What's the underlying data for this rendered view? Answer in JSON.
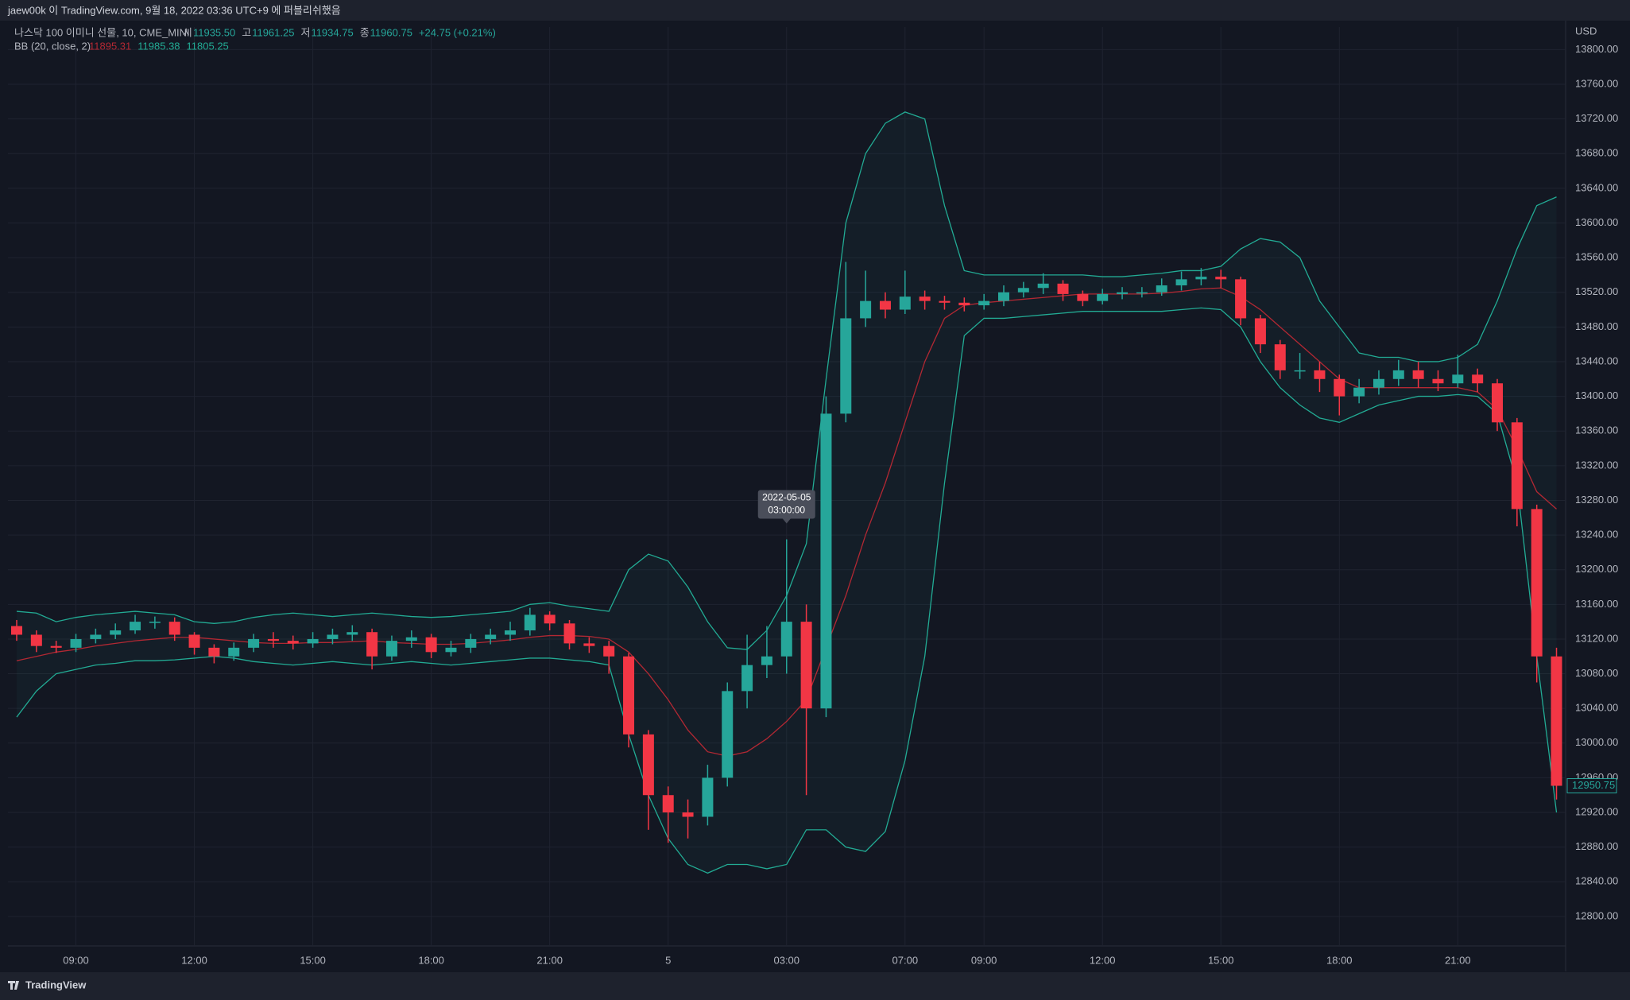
{
  "chart_data": {
    "type": "candlestick",
    "header": "jaew00k 이 TradingView.com, 9월 18, 2022 03:36 UTC+9 에 퍼블리쉬했음",
    "legend": {
      "symbol": "나스닥 100 이미니 선물, 10, CME_MINI",
      "open_label": "시",
      "open": "11935.50",
      "high_label": "고",
      "high": "11961.25",
      "low_label": "저",
      "low": "11934.75",
      "close_label": "종",
      "close": "11960.75",
      "change": "+24.75 (+0.21%)"
    },
    "indicator": {
      "name": "BB (20, close, 2)",
      "basis": "11895.31",
      "upper": "11985.38",
      "lower": "11805.25"
    },
    "currency": "USD",
    "tooltip": {
      "date": "2022-05-05",
      "time": "03:00:00",
      "index": 39
    },
    "footer": "TradingView",
    "categories": [
      null,
      null,
      null,
      "09:00",
      null,
      null,
      null,
      null,
      null,
      "12:00",
      null,
      null,
      null,
      null,
      null,
      "15:00",
      null,
      null,
      null,
      null,
      null,
      "18:00",
      null,
      null,
      null,
      null,
      null,
      "21:00",
      null,
      null,
      null,
      null,
      null,
      "5",
      null,
      null,
      null,
      null,
      null,
      "03:00",
      null,
      null,
      null,
      null,
      null,
      "07:00",
      null,
      null,
      null,
      "09:00",
      null,
      null,
      null,
      null,
      null,
      "12:00",
      null,
      null,
      null,
      null,
      null,
      "15:00",
      null,
      null,
      null,
      null,
      null,
      "18:00",
      null,
      null,
      null,
      null,
      null,
      "21:00",
      null,
      null,
      null,
      null,
      null
    ],
    "open": [
      13135,
      13125,
      13112,
      13110,
      13120,
      13125,
      13130,
      13140,
      13140,
      13125,
      13110,
      13100,
      13110,
      13120,
      13118,
      13115,
      13120,
      13125,
      13128,
      13100,
      13118,
      13122,
      13105,
      13110,
      13120,
      13125,
      13130,
      13148,
      13138,
      13115,
      13112,
      13100,
      13010,
      12940,
      12920,
      12915,
      12960,
      13060,
      13090,
      13100,
      13140,
      13040,
      13380,
      13490,
      13510,
      13500,
      13515,
      13510,
      13508,
      13505,
      13510,
      13520,
      13525,
      13530,
      13518,
      13510,
      13518,
      13520,
      13520,
      13528,
      13535,
      13538,
      13535,
      13490,
      13460,
      13430,
      13430,
      13420,
      13400,
      13410,
      13420,
      13430,
      13420,
      13415,
      13425,
      13415,
      13370,
      13270,
      13100
    ],
    "high": [
      13142,
      13130,
      13118,
      13126,
      13132,
      13138,
      13148,
      13146,
      13145,
      13128,
      13114,
      13116,
      13126,
      13128,
      13124,
      13128,
      13132,
      13136,
      13132,
      13124,
      13130,
      13126,
      13118,
      13126,
      13132,
      13140,
      13156,
      13152,
      13142,
      13122,
      13118,
      13104,
      13015,
      12950,
      12935,
      12975,
      13070,
      13125,
      13135,
      13235,
      13160,
      13400,
      13555,
      13545,
      13520,
      13545,
      13522,
      13516,
      13514,
      13518,
      13528,
      13532,
      13542,
      13534,
      13522,
      13524,
      13526,
      13526,
      13536,
      13544,
      13548,
      13546,
      13538,
      13494,
      13465,
      13450,
      13440,
      13425,
      13420,
      13430,
      13442,
      13440,
      13430,
      13448,
      13432,
      13420,
      13375,
      13275,
      13110
    ],
    "low": [
      13118,
      13105,
      13104,
      13105,
      13115,
      13120,
      13126,
      13132,
      13118,
      13102,
      13092,
      13095,
      13105,
      13110,
      13108,
      13110,
      13114,
      13118,
      13085,
      13095,
      13110,
      13098,
      13100,
      13104,
      13114,
      13118,
      13124,
      13130,
      13108,
      13104,
      13080,
      12995,
      12900,
      12885,
      12890,
      12905,
      12950,
      13040,
      13075,
      13080,
      12940,
      13030,
      13370,
      13480,
      13490,
      13495,
      13500,
      13500,
      13498,
      13500,
      13504,
      13514,
      13518,
      13510,
      13504,
      13506,
      13512,
      13514,
      13516,
      13522,
      13528,
      13525,
      13482,
      13450,
      13420,
      13420,
      13405,
      13378,
      13392,
      13402,
      13412,
      13410,
      13406,
      13410,
      13405,
      13360,
      13250,
      13070,
      12935
    ],
    "close": [
      13125,
      13112,
      13110,
      13120,
      13125,
      13130,
      13140,
      13140,
      13125,
      13110,
      13100,
      13110,
      13120,
      13118,
      13115,
      13120,
      13125,
      13128,
      13100,
      13118,
      13122,
      13105,
      13110,
      13120,
      13125,
      13130,
      13148,
      13138,
      13115,
      13112,
      13100,
      13010,
      12940,
      12920,
      12915,
      12960,
      13060,
      13090,
      13100,
      13140,
      13040,
      13380,
      13490,
      13510,
      13500,
      13515,
      13510,
      13508,
      13505,
      13510,
      13520,
      13525,
      13530,
      13518,
      13510,
      13518,
      13520,
      13520,
      13528,
      13535,
      13538,
      13535,
      13490,
      13460,
      13430,
      13430,
      13420,
      13400,
      13410,
      13420,
      13430,
      13420,
      13415,
      13425,
      13415,
      13370,
      13270,
      13100,
      12950.75
    ],
    "up_color": "#26a69a",
    "down_color": "#f23645",
    "bands": {
      "upper_color": "#22ab94",
      "basis_color": "#b22833",
      "lower_color": "#22ab94",
      "upper": [
        13152,
        13150,
        13140,
        13145,
        13148,
        13150,
        13152,
        13150,
        13148,
        13140,
        13138,
        13140,
        13145,
        13148,
        13150,
        13148,
        13146,
        13148,
        13150,
        13148,
        13146,
        13145,
        13146,
        13148,
        13150,
        13152,
        13160,
        13162,
        13158,
        13155,
        13152,
        13200,
        13218,
        13210,
        13180,
        13140,
        13110,
        13108,
        13130,
        13170,
        13230,
        13420,
        13600,
        13680,
        13715,
        13728,
        13720,
        13620,
        13545,
        13540,
        13540,
        13540,
        13540,
        13540,
        13540,
        13538,
        13538,
        13540,
        13542,
        13545,
        13545,
        13550,
        13570,
        13582,
        13578,
        13560,
        13510,
        13480,
        13450,
        13445,
        13445,
        13440,
        13440,
        13445,
        13460,
        13510,
        13570,
        13620,
        13630
      ],
      "basis": [
        13095,
        13100,
        13105,
        13108,
        13112,
        13115,
        13118,
        13120,
        13122,
        13122,
        13120,
        13118,
        13116,
        13115,
        13115,
        13116,
        13116,
        13117,
        13118,
        13116,
        13115,
        13114,
        13114,
        13115,
        13117,
        13119,
        13122,
        13124,
        13124,
        13123,
        13120,
        13105,
        13080,
        13050,
        13015,
        12990,
        12985,
        12990,
        13005,
        13025,
        13050,
        13110,
        13170,
        13240,
        13300,
        13370,
        13440,
        13490,
        13505,
        13508,
        13510,
        13512,
        13514,
        13516,
        13518,
        13518,
        13518,
        13518,
        13519,
        13521,
        13524,
        13525,
        13515,
        13500,
        13480,
        13460,
        13440,
        13420,
        13410,
        13410,
        13410,
        13410,
        13410,
        13410,
        13405,
        13385,
        13340,
        13290,
        13270
      ],
      "lower": [
        13030,
        13060,
        13080,
        13085,
        13090,
        13092,
        13095,
        13095,
        13096,
        13098,
        13100,
        13098,
        13094,
        13092,
        13090,
        13092,
        13094,
        13092,
        13090,
        13092,
        13094,
        13092,
        13090,
        13092,
        13094,
        13096,
        13098,
        13098,
        13096,
        13094,
        13090,
        13010,
        12940,
        12890,
        12860,
        12850,
        12860,
        12860,
        12855,
        12860,
        12900,
        12900,
        12880,
        12875,
        12898,
        12980,
        13100,
        13300,
        13470,
        13490,
        13490,
        13492,
        13494,
        13496,
        13498,
        13498,
        13498,
        13498,
        13498,
        13500,
        13502,
        13500,
        13480,
        13440,
        13410,
        13390,
        13375,
        13370,
        13380,
        13390,
        13395,
        13400,
        13400,
        13402,
        13400,
        13380,
        13300,
        13100,
        12920
      ]
    },
    "ylim": [
      12766,
      13826
    ],
    "yticks": [
      {
        "value": 12800,
        "label": "12800.00"
      },
      {
        "value": 12840,
        "label": "12840.00"
      },
      {
        "value": 12880,
        "label": "12880.00"
      },
      {
        "value": 12920,
        "label": "12920.00"
      },
      {
        "value": 12960,
        "label": "12960.00"
      },
      {
        "value": 13000,
        "label": "13000.00"
      },
      {
        "value": 13040,
        "label": "13040.00"
      },
      {
        "value": 13080,
        "label": "13080.00"
      },
      {
        "value": 13120,
        "label": "13120.00"
      },
      {
        "value": 13160,
        "label": "13160.00"
      },
      {
        "value": 13200,
        "label": "13200.00"
      },
      {
        "value": 13240,
        "label": "13240.00"
      },
      {
        "value": 13280,
        "label": "13280.00"
      },
      {
        "value": 13320,
        "label": "13320.00"
      },
      {
        "value": 13360,
        "label": "13360.00"
      },
      {
        "value": 13400,
        "label": "13400.00"
      },
      {
        "value": 13440,
        "label": "13440.00"
      },
      {
        "value": 13480,
        "label": "13480.00"
      },
      {
        "value": 13520,
        "label": "13520.00"
      },
      {
        "value": 13560,
        "label": "13560.00"
      },
      {
        "value": 13600,
        "label": "13600.00"
      },
      {
        "value": 13640,
        "label": "13640.00"
      },
      {
        "value": 13680,
        "label": "13680.00"
      },
      {
        "value": 13720,
        "label": "13720.00"
      },
      {
        "value": 13760,
        "label": "13760.00"
      },
      {
        "value": 13800,
        "label": "13800.00"
      }
    ],
    "grid": true
  }
}
